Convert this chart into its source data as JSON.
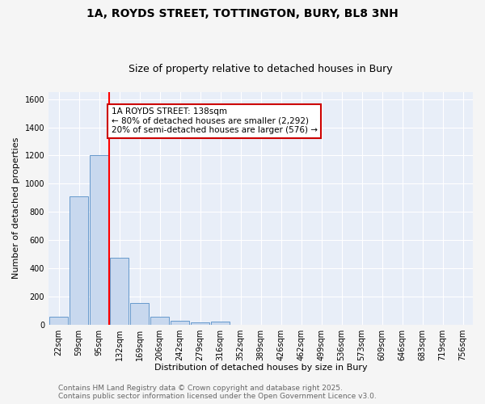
{
  "title_line1": "1A, ROYDS STREET, TOTTINGTON, BURY, BL8 3NH",
  "title_line2": "Size of property relative to detached houses in Bury",
  "xlabel": "Distribution of detached houses by size in Bury",
  "ylabel": "Number of detached properties",
  "bar_color": "#c8d8ee",
  "bar_edge_color": "#6699cc",
  "background_color": "#e8eef8",
  "grid_color": "#ffffff",
  "fig_background": "#f5f5f5",
  "categories": [
    "22sqm",
    "59sqm",
    "95sqm",
    "132sqm",
    "169sqm",
    "206sqm",
    "242sqm",
    "279sqm",
    "316sqm",
    "352sqm",
    "389sqm",
    "426sqm",
    "462sqm",
    "499sqm",
    "536sqm",
    "573sqm",
    "609sqm",
    "646sqm",
    "683sqm",
    "719sqm",
    "756sqm"
  ],
  "values": [
    55,
    910,
    1200,
    475,
    150,
    57,
    28,
    15,
    20,
    0,
    0,
    0,
    0,
    0,
    0,
    0,
    0,
    0,
    0,
    0,
    0
  ],
  "ylim": [
    0,
    1650
  ],
  "yticks": [
    0,
    200,
    400,
    600,
    800,
    1000,
    1200,
    1400,
    1600
  ],
  "red_line_index": 3,
  "annotation_text": "1A ROYDS STREET: 138sqm\n← 80% of detached houses are smaller (2,292)\n20% of semi-detached houses are larger (576) →",
  "annotation_box_color": "#ffffff",
  "annotation_border_color": "#cc0000",
  "footnote_line1": "Contains HM Land Registry data © Crown copyright and database right 2025.",
  "footnote_line2": "Contains public sector information licensed under the Open Government Licence v3.0.",
  "title_fontsize": 10,
  "subtitle_fontsize": 9,
  "tick_fontsize": 7,
  "ylabel_fontsize": 8,
  "xlabel_fontsize": 8,
  "annotation_fontsize": 7.5,
  "footnote_fontsize": 6.5
}
